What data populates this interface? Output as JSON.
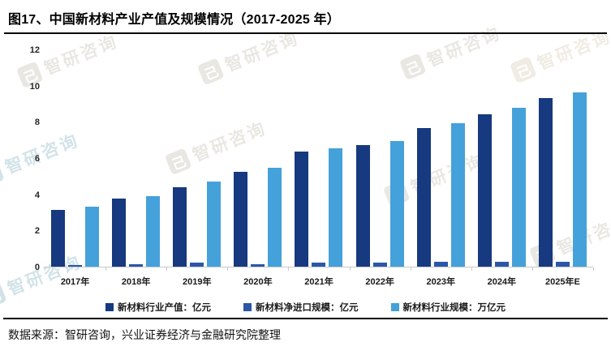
{
  "title": "图17、中国新材料产业产值及规模情况（2017-2025 年）",
  "source": "数据来源：智研咨询，兴业证券经济与金融研究院整理",
  "watermark": {
    "logo_glyph": "己",
    "text": "智研咨询"
  },
  "colors": {
    "output_value": "#16397F",
    "net_import": "#2B57A7",
    "industry_scale": "#45A1DA",
    "axis_line": "#C9C9C9",
    "title_text": "#000000"
  },
  "chart_data": {
    "type": "bar",
    "title": "图17、中国新材料产业产值及规模情况（2017-2025 年）",
    "categories": [
      "2017年",
      "2018年",
      "2019年",
      "2020年",
      "2021年",
      "2022年",
      "2023年",
      "2024年",
      "2025年E"
    ],
    "series": [
      {
        "name": "新材料行业产值：亿元",
        "color": "#16397F",
        "values": [
          3.2,
          3.8,
          4.45,
          5.3,
          6.4,
          6.75,
          7.7,
          8.45,
          9.35
        ]
      },
      {
        "name": "新材料净进口规模：亿元",
        "color": "#2B57A7",
        "values": [
          0.15,
          0.2,
          0.25,
          0.2,
          0.25,
          0.25,
          0.3,
          0.3,
          0.3
        ]
      },
      {
        "name": "新材料行业规模：万亿元",
        "color": "#45A1DA",
        "values": [
          3.35,
          3.95,
          4.75,
          5.5,
          6.6,
          7.0,
          7.95,
          8.8,
          9.65
        ]
      }
    ],
    "xlabel": "",
    "ylabel": "",
    "ylim": [
      0,
      12
    ],
    "yticks": [
      0,
      2,
      4,
      6,
      8,
      10,
      12
    ],
    "grid": false,
    "legend_position": "bottom"
  }
}
